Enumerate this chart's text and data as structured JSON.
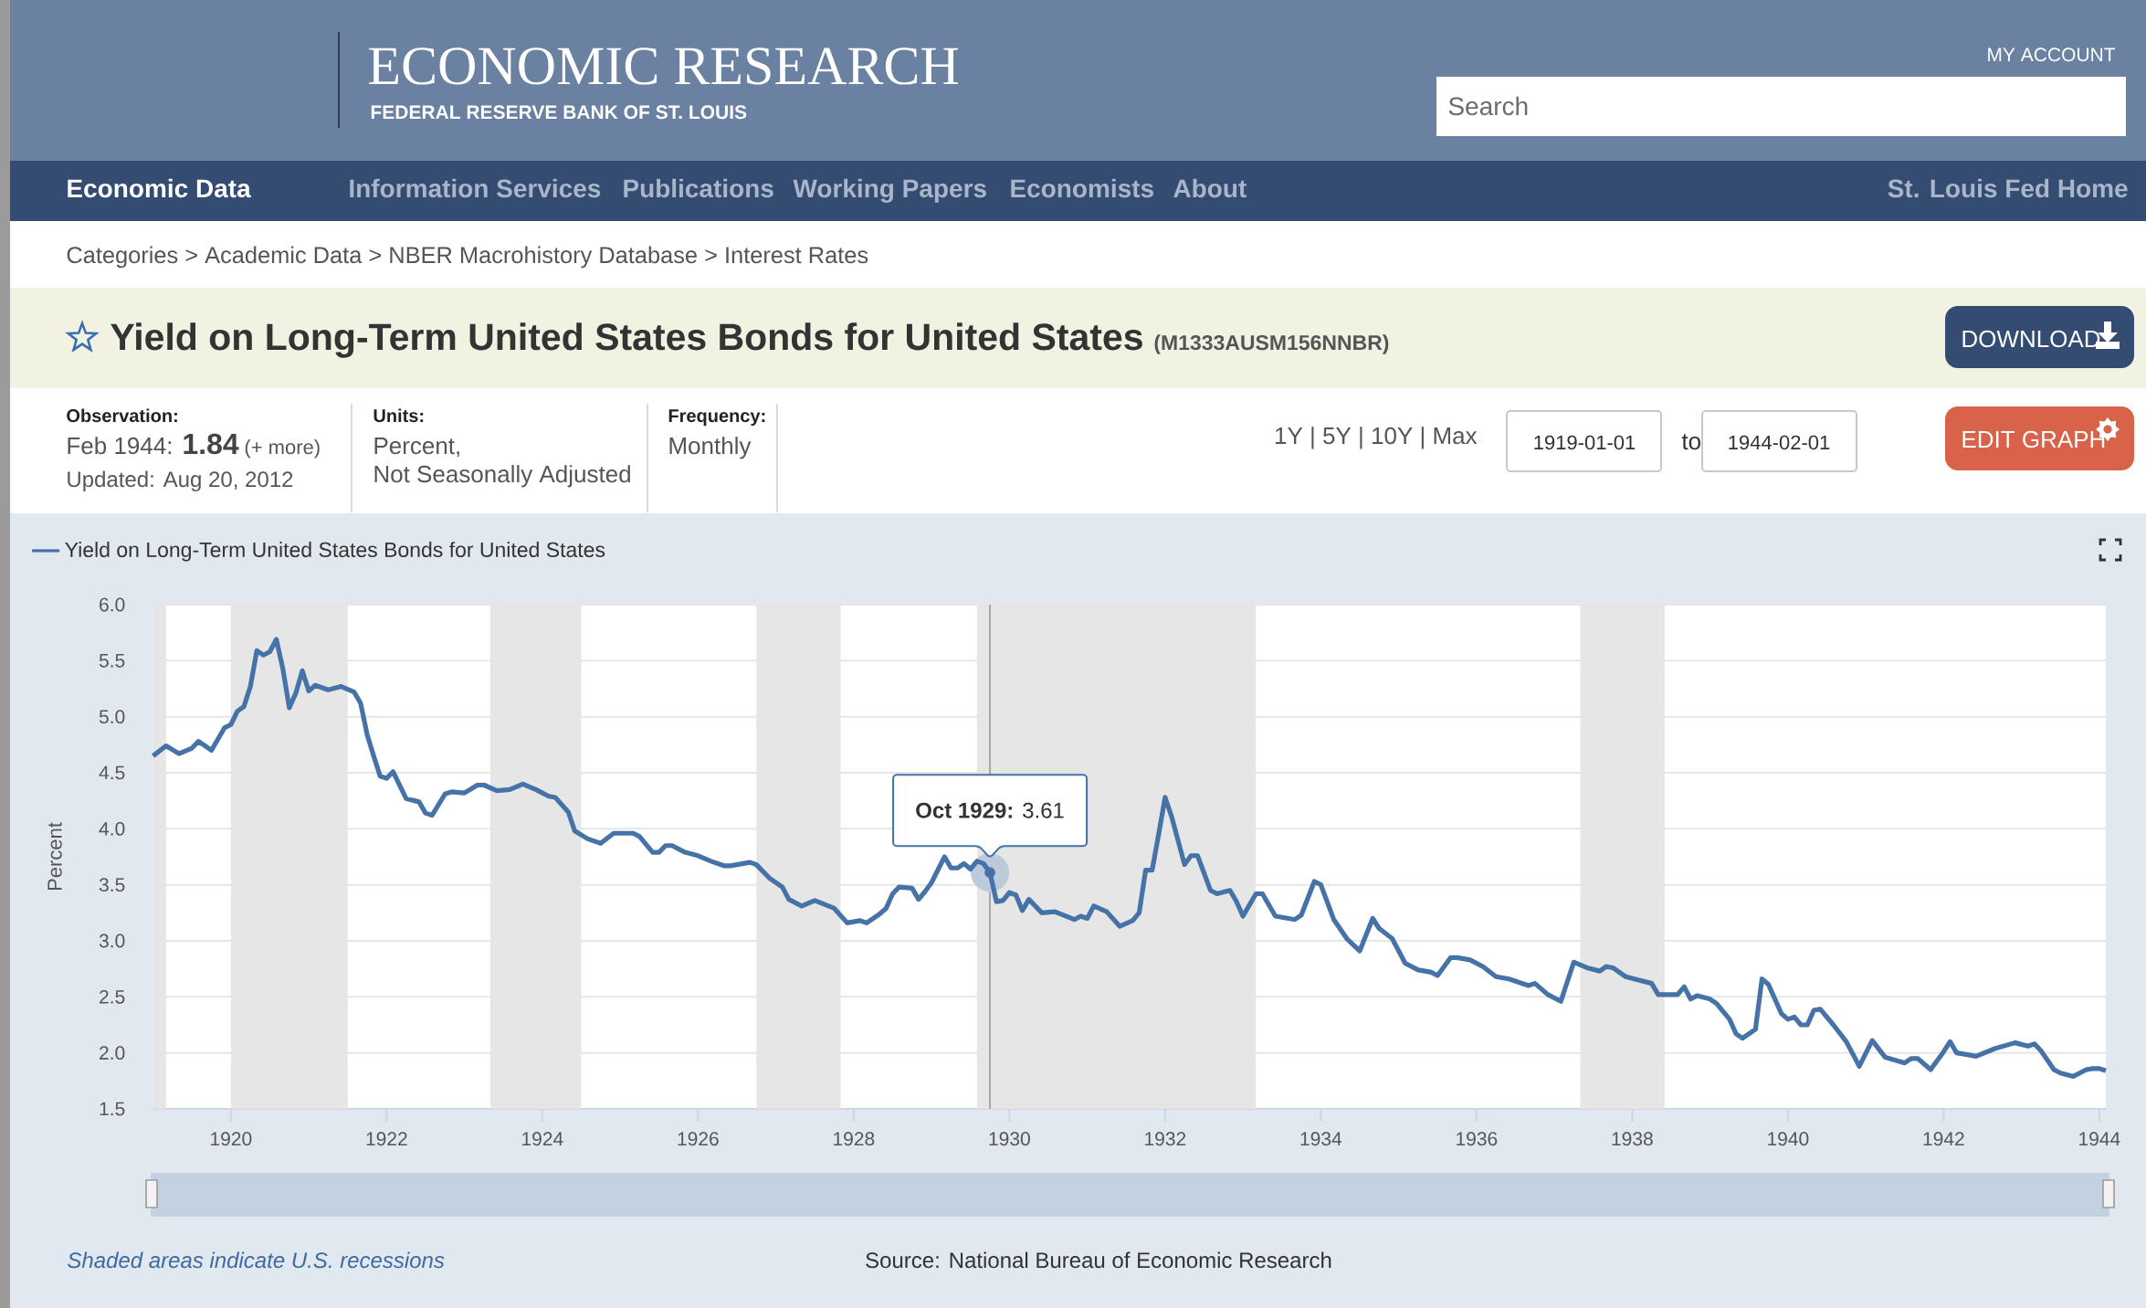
{
  "chart_data": {
    "type": "line",
    "title": "Yield on Long-Term United States Bonds for United States",
    "subtitle": "(M1333AUSM156NNBR)",
    "ylabel": "Percent",
    "x": [
      "1919-01",
      "1919-03",
      "1919-05",
      "1919-07",
      "1919-08",
      "1919-10",
      "1919-12",
      "1920-01",
      "1920-02",
      "1920-03",
      "1920-04",
      "1920-05",
      "1920-06",
      "1920-07",
      "1920-08",
      "1920-09",
      "1920-10",
      "1920-11",
      "1920-12",
      "1921-01",
      "1921-02",
      "1921-04",
      "1921-06",
      "1921-08",
      "1921-09",
      "1921-10",
      "1921-11",
      "1921-12",
      "1922-01",
      "1922-02",
      "1922-04",
      "1922-06",
      "1922-07",
      "1922-08",
      "1922-10",
      "1922-11",
      "1923-01",
      "1923-03",
      "1923-04",
      "1923-06",
      "1923-08",
      "1923-10",
      "1923-12",
      "1924-02",
      "1924-03",
      "1924-05",
      "1924-06",
      "1924-08",
      "1924-10",
      "1924-12",
      "1925-03",
      "1925-04",
      "1925-06",
      "1925-07",
      "1925-08",
      "1925-09",
      "1925-11",
      "1926-01",
      "1926-03",
      "1926-05",
      "1926-06",
      "1926-09",
      "1926-10",
      "1926-12",
      "1927-02",
      "1927-03",
      "1927-05",
      "1927-07",
      "1927-10",
      "1927-12",
      "1928-02",
      "1928-03",
      "1928-05",
      "1928-06",
      "1928-07",
      "1928-08",
      "1928-10",
      "1928-11",
      "1928-12",
      "1929-01",
      "1929-03",
      "1929-04",
      "1929-05",
      "1929-06",
      "1929-07",
      "1929-08",
      "1929-09",
      "1929-10",
      "1929-11",
      "1929-12",
      "1930-01",
      "1930-02",
      "1930-03",
      "1930-04",
      "1930-06",
      "1930-08",
      "1930-11",
      "1930-12",
      "1931-01",
      "1931-02",
      "1931-04",
      "1931-06",
      "1931-08",
      "1931-09",
      "1931-10",
      "1931-11",
      "1931-12",
      "1932-01",
      "1932-02",
      "1932-04",
      "1932-05",
      "1932-06",
      "1932-08",
      "1932-09",
      "1932-11",
      "1932-12",
      "1933-01",
      "1933-03",
      "1933-04",
      "1933-06",
      "1933-07",
      "1933-09",
      "1933-10",
      "1933-12",
      "1934-01",
      "1934-03",
      "1934-05",
      "1934-07",
      "1934-09",
      "1934-10",
      "1934-12",
      "1935-02",
      "1935-04",
      "1935-06",
      "1935-07",
      "1935-09",
      "1935-10",
      "1935-12",
      "1936-02",
      "1936-04",
      "1936-06",
      "1936-09",
      "1936-10",
      "1936-12",
      "1937-02",
      "1937-04",
      "1937-06",
      "1937-08",
      "1937-09",
      "1937-10",
      "1937-12",
      "1938-02",
      "1938-04",
      "1938-05",
      "1938-08",
      "1938-09",
      "1938-10",
      "1938-11",
      "1939-01",
      "1939-02",
      "1939-04",
      "1939-05",
      "1939-06",
      "1939-08",
      "1939-09",
      "1939-10",
      "1939-12",
      "1940-01",
      "1940-02",
      "1940-03",
      "1940-04",
      "1940-05",
      "1940-06",
      "1940-08",
      "1940-10",
      "1940-12",
      "1941-02",
      "1941-04",
      "1941-07",
      "1941-08",
      "1941-09",
      "1941-11",
      "1942-01",
      "1942-02",
      "1942-03",
      "1942-06",
      "1942-09",
      "1942-12",
      "1943-02",
      "1943-03",
      "1943-04",
      "1943-06",
      "1943-07",
      "1943-09",
      "1943-11",
      "1943-12",
      "1944-01",
      "1944-02"
    ],
    "series": [
      {
        "name": "Yield on Long-Term United States Bonds for United States",
        "color": "#4572a7",
        "values": [
          4.65,
          4.74,
          4.67,
          4.72,
          4.78,
          4.7,
          4.9,
          4.93,
          5.05,
          5.09,
          5.27,
          5.59,
          5.55,
          5.58,
          5.69,
          5.43,
          5.08,
          5.21,
          5.41,
          5.23,
          5.28,
          5.24,
          5.27,
          5.22,
          5.12,
          4.84,
          4.65,
          4.47,
          4.45,
          4.51,
          4.27,
          4.24,
          4.14,
          4.12,
          4.31,
          4.33,
          4.32,
          4.39,
          4.39,
          4.34,
          4.35,
          4.4,
          4.35,
          4.29,
          4.28,
          4.15,
          3.98,
          3.91,
          3.87,
          3.96,
          3.96,
          3.93,
          3.79,
          3.79,
          3.85,
          3.85,
          3.79,
          3.76,
          3.71,
          3.67,
          3.67,
          3.7,
          3.68,
          3.56,
          3.48,
          3.37,
          3.31,
          3.36,
          3.29,
          3.16,
          3.18,
          3.16,
          3.24,
          3.29,
          3.42,
          3.48,
          3.47,
          3.37,
          3.44,
          3.52,
          3.75,
          3.65,
          3.65,
          3.69,
          3.64,
          3.71,
          3.69,
          3.61,
          3.35,
          3.36,
          3.43,
          3.41,
          3.27,
          3.37,
          3.25,
          3.26,
          3.19,
          3.22,
          3.2,
          3.31,
          3.26,
          3.13,
          3.18,
          3.25,
          3.63,
          3.63,
          3.95,
          4.28,
          4.11,
          3.68,
          3.76,
          3.76,
          3.45,
          3.42,
          3.45,
          3.35,
          3.22,
          3.42,
          3.42,
          3.22,
          3.21,
          3.19,
          3.23,
          3.53,
          3.5,
          3.19,
          3.02,
          2.91,
          3.2,
          3.11,
          3.02,
          2.8,
          2.74,
          2.72,
          2.69,
          2.85,
          2.85,
          2.83,
          2.77,
          2.68,
          2.66,
          2.6,
          2.62,
          2.52,
          2.46,
          2.81,
          2.76,
          2.73,
          2.77,
          2.76,
          2.68,
          2.65,
          2.62,
          2.52,
          2.52,
          2.59,
          2.48,
          2.51,
          2.48,
          2.44,
          2.3,
          2.17,
          2.13,
          2.21,
          2.66,
          2.61,
          2.35,
          2.3,
          2.32,
          2.25,
          2.25,
          2.38,
          2.39,
          2.25,
          2.1,
          1.88,
          2.11,
          1.96,
          1.91,
          1.95,
          1.95,
          1.85,
          2.01,
          2.1,
          2.0,
          1.97,
          2.04,
          2.09,
          2.06,
          2.08,
          2.02,
          1.85,
          1.82,
          1.79,
          1.85,
          1.86,
          1.86,
          1.84
        ]
      }
    ],
    "xlim": [
      "1919-01",
      "1944-02"
    ],
    "ylim": [
      1.5,
      6.0
    ],
    "xticks": [
      "1920",
      "1922",
      "1924",
      "1926",
      "1928",
      "1930",
      "1932",
      "1934",
      "1936",
      "1938",
      "1940",
      "1942",
      "1944"
    ],
    "yticks": [
      {
        "value": 1.5,
        "label": "1.5"
      },
      {
        "value": 2.0,
        "label": "2.0"
      },
      {
        "value": 2.5,
        "label": "2.5"
      },
      {
        "value": 3.0,
        "label": "3.0"
      },
      {
        "value": 3.5,
        "label": "3.5"
      },
      {
        "value": 4.0,
        "label": "4.0"
      },
      {
        "value": 4.5,
        "label": "4.5"
      },
      {
        "value": 5.0,
        "label": "5.0"
      },
      {
        "value": 5.5,
        "label": "5.5"
      },
      {
        "value": 6.0,
        "label": "6.0"
      }
    ],
    "grid": "y",
    "legend": "top left",
    "bands": [
      {
        "axis": "x",
        "from": "1919-01",
        "to": "1919-03",
        "color": "#e6e6e6"
      },
      {
        "axis": "x",
        "from": "1920-01",
        "to": "1921-07",
        "color": "#e6e6e6"
      },
      {
        "axis": "x",
        "from": "1923-05",
        "to": "1924-07",
        "color": "#e6e6e6"
      },
      {
        "axis": "x",
        "from": "1926-10",
        "to": "1927-11",
        "color": "#e6e6e6"
      },
      {
        "axis": "x",
        "from": "1929-08",
        "to": "1933-03",
        "color": "#e6e6e6"
      },
      {
        "axis": "x",
        "from": "1937-05",
        "to": "1938-06",
        "color": "#e6e6e6"
      }
    ],
    "ref_lines": [
      {
        "axis": "x",
        "value": "1929-10",
        "color": "#a6a6a6"
      }
    ],
    "annotations": [
      "ECONOMIC RESEARCH",
      "FEDERAL RESERVE BANK OF ST. LOUIS",
      "MY ACCOUNT",
      "Search",
      "Economic Data",
      "Information Services",
      "Publications",
      "Working Papers",
      "Economists",
      "About",
      "St. Louis Fed Home",
      "Categories > Academic Data > NBER Macrohistory Database > Interest Rates",
      "DOWNLOAD",
      "Observation:",
      "Feb 1944:",
      "1.84",
      "(+ more)",
      "Updated: Aug 20, 2012",
      "Units:",
      "Percent,",
      "Not Seasonally Adjusted",
      "Frequency:",
      "Monthly",
      "1Y | 5Y | 10Y | Max",
      "1919-01-01",
      "to",
      "1944-02-01",
      "EDIT GRAPH",
      "Shaded areas indicate U.S. recessions",
      "Source: National Bureau of Economic Research",
      {
        "text": "**Oct 1929:** 3.61",
        "x": "1929-10",
        "y": 3.61
      }
    ]
  }
}
